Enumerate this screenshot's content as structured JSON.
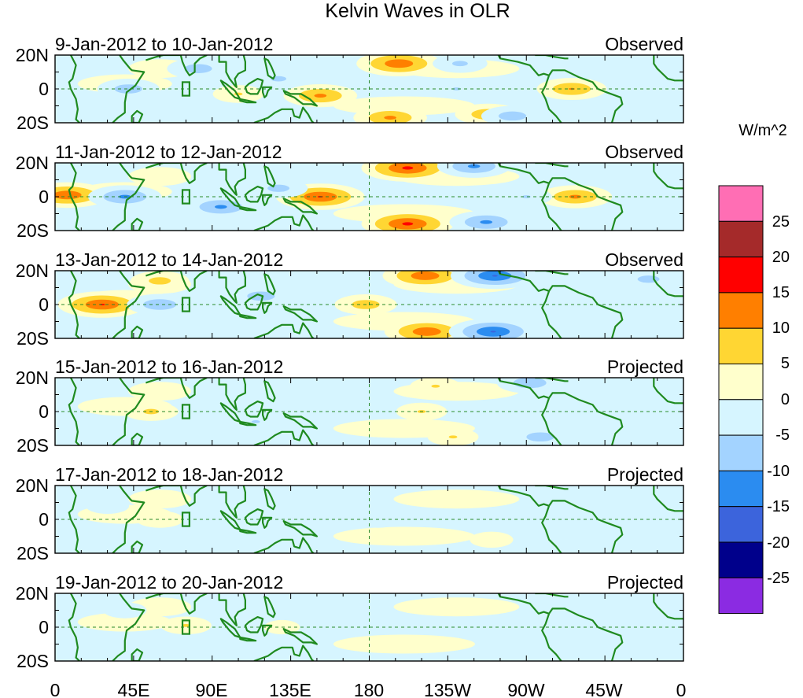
{
  "chart_data": {
    "type": "heatmap",
    "title": "Kelvin Waves in OLR",
    "colorbar": {
      "unit_label": "W/m^2",
      "tick_labels": [
        "25",
        "20",
        "15",
        "10",
        "5",
        "0",
        "-5",
        "-10",
        "-15",
        "-20",
        "-25"
      ],
      "bins": [
        {
          "range": "above 25",
          "color": "#ff6eb4"
        },
        {
          "range": "20 to 25",
          "color": "#a52a2a"
        },
        {
          "range": "15 to 20",
          "color": "#ff0000"
        },
        {
          "range": "10 to 15",
          "color": "#ff7f00"
        },
        {
          "range": "5 to 10",
          "color": "#ffd633"
        },
        {
          "range": "0 to 5",
          "color": "#ffffcc"
        },
        {
          "range": "-5 to 0",
          "color": "#d6f5ff"
        },
        {
          "range": "-10 to -5",
          "color": "#a3d3ff"
        },
        {
          "range": "-15 to -10",
          "color": "#2b8cf0"
        },
        {
          "range": "-20 to -15",
          "color": "#3c64dc"
        },
        {
          "range": "-25 to -20",
          "color": "#00008b"
        },
        {
          "range": "below -25",
          "color": "#8b2be2"
        }
      ]
    },
    "x_ticks": [
      "0",
      "45E",
      "90E",
      "135E",
      "180",
      "135W",
      "90W",
      "45W",
      "0"
    ],
    "y_ticks": [
      "20N",
      "0",
      "20S"
    ],
    "xlim": [
      0,
      360
    ],
    "ylim": [
      -20,
      20
    ],
    "panels": [
      {
        "date_range": "9-Jan-2012 to 10-Jan-2012",
        "label": "Observed",
        "anomalies": [
          {
            "lon": 105,
            "lat": -3,
            "value": 6
          },
          {
            "lon": 152,
            "lat": -4,
            "value": 12
          },
          {
            "lon": 197,
            "lat": 15,
            "value": 15
          },
          {
            "lon": 192,
            "lat": -17,
            "value": 12
          },
          {
            "lon": 248,
            "lat": -15,
            "value": 10
          },
          {
            "lon": 296,
            "lat": 0,
            "value": 11
          },
          {
            "lon": 42,
            "lat": 0,
            "value": -9
          },
          {
            "lon": 82,
            "lat": 12,
            "value": -9
          },
          {
            "lon": 128,
            "lat": 6,
            "value": -7
          },
          {
            "lon": 230,
            "lat": 0,
            "value": -6
          },
          {
            "lon": 262,
            "lat": -16,
            "value": -9
          },
          {
            "lon": 232,
            "lat": 15,
            "value": -7
          }
        ]
      },
      {
        "date_range": "11-Jan-2012 to 12-Jan-2012",
        "label": "Observed",
        "anomalies": [
          {
            "lon": 7,
            "lat": 1,
            "value": 15
          },
          {
            "lon": 152,
            "lat": 0,
            "value": 16
          },
          {
            "lon": 202,
            "lat": 17,
            "value": 17
          },
          {
            "lon": 202,
            "lat": -16,
            "value": 17
          },
          {
            "lon": 298,
            "lat": 0,
            "value": 12
          },
          {
            "lon": 40,
            "lat": 0,
            "value": -12
          },
          {
            "lon": 95,
            "lat": -6,
            "value": -12
          },
          {
            "lon": 128,
            "lat": 5,
            "value": -8
          },
          {
            "lon": 240,
            "lat": 18,
            "value": -12
          },
          {
            "lon": 247,
            "lat": -15,
            "value": -12
          },
          {
            "lon": 270,
            "lat": 0,
            "value": -6
          }
        ]
      },
      {
        "date_range": "13-Jan-2012 to 14-Jan-2012",
        "label": "Observed",
        "anomalies": [
          {
            "lon": 27,
            "lat": 0,
            "value": 16
          },
          {
            "lon": 178,
            "lat": 0,
            "value": 9
          },
          {
            "lon": 212,
            "lat": 17,
            "value": 15
          },
          {
            "lon": 213,
            "lat": -16,
            "value": 15
          },
          {
            "lon": 60,
            "lat": 14,
            "value": 8
          },
          {
            "lon": 60,
            "lat": 0,
            "value": -10
          },
          {
            "lon": 118,
            "lat": 5,
            "value": -9
          },
          {
            "lon": 252,
            "lat": 17,
            "value": -16
          },
          {
            "lon": 251,
            "lat": -16,
            "value": -16
          },
          {
            "lon": 340,
            "lat": 15,
            "value": -8
          }
        ]
      },
      {
        "date_range": "15-Jan-2012 to 16-Jan-2012",
        "label": "Projected",
        "anomalies": [
          {
            "lon": 55,
            "lat": 0,
            "value": 7
          },
          {
            "lon": 210,
            "lat": 0,
            "value": 6
          },
          {
            "lon": 218,
            "lat": 15,
            "value": 6
          },
          {
            "lon": 228,
            "lat": -15,
            "value": 6
          },
          {
            "lon": 115,
            "lat": -6,
            "value": -6
          },
          {
            "lon": 272,
            "lat": 17,
            "value": -10
          },
          {
            "lon": 278,
            "lat": -15,
            "value": -9
          }
        ]
      },
      {
        "date_range": "17-Jan-2012 to 18-Jan-2012",
        "label": "Projected",
        "anomalies": [
          {
            "lon": 60,
            "lat": 0,
            "value": 5
          },
          {
            "lon": 250,
            "lat": -12,
            "value": 4
          },
          {
            "lon": 185,
            "lat": 0,
            "value": -5
          },
          {
            "lon": 30,
            "lat": 8,
            "value": -4
          }
        ]
      },
      {
        "date_range": "19-Jan-2012 to 20-Jan-2012",
        "label": "Projected",
        "anomalies": [
          {
            "lon": 75,
            "lat": 1,
            "value": 6
          },
          {
            "lon": 130,
            "lat": 0,
            "value": 2
          },
          {
            "lon": 40,
            "lat": 10,
            "value": -4
          }
        ]
      }
    ]
  }
}
